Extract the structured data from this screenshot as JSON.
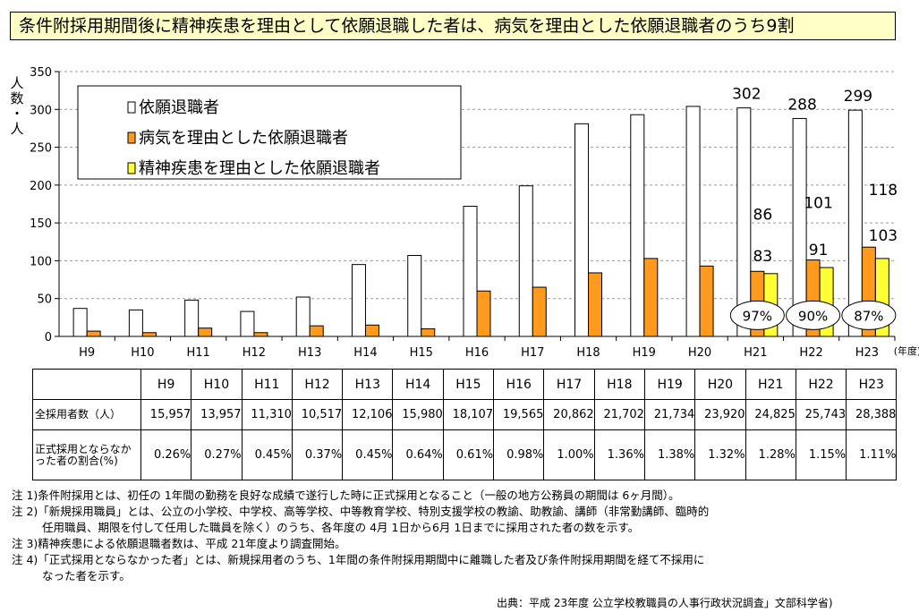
{
  "title": "条件附採用期間後に精神疾患を理由として依願退職した者は、病気を理由とした依願退職者のうち9割",
  "chart_data": {
    "type": "bar",
    "ylabel": "人数・人",
    "xunit": "(年度)",
    "ylim": [
      0,
      350
    ],
    "yticks": [
      0,
      50,
      100,
      150,
      200,
      250,
      300,
      350
    ],
    "grid": true,
    "legend_position": "top-left",
    "categories": [
      "H9",
      "H10",
      "H11",
      "H12",
      "H13",
      "H14",
      "H15",
      "H16",
      "H17",
      "H18",
      "H19",
      "H20",
      "H21",
      "H22",
      "H23"
    ],
    "series": [
      {
        "name": "依願退職者",
        "color": "#ffffff",
        "values": [
          37,
          35,
          48,
          33,
          52,
          95,
          107,
          172,
          199,
          281,
          293,
          304,
          302,
          288,
          299
        ],
        "labels": [
          null,
          null,
          null,
          null,
          null,
          null,
          null,
          null,
          null,
          null,
          null,
          null,
          "302",
          "288",
          "299"
        ]
      },
      {
        "name": "病気を理由とした依願退職者",
        "color": "#ff9a1e",
        "values": [
          7,
          5,
          11,
          5,
          14,
          15,
          10,
          60,
          65,
          84,
          103,
          93,
          86,
          101,
          118
        ],
        "labels": [
          null,
          null,
          null,
          null,
          null,
          null,
          null,
          null,
          null,
          null,
          null,
          null,
          "86",
          "101",
          "118"
        ]
      },
      {
        "name": "精神疾患を理由とした依願退職者",
        "color": "#ffff33",
        "values": [
          null,
          null,
          null,
          null,
          null,
          null,
          null,
          null,
          null,
          null,
          null,
          null,
          83,
          91,
          103
        ],
        "labels": [
          null,
          null,
          null,
          null,
          null,
          null,
          null,
          null,
          null,
          null,
          null,
          null,
          "83",
          "91",
          "103"
        ]
      }
    ],
    "annotations": [
      {
        "category": "H21",
        "text": "97%"
      },
      {
        "category": "H22",
        "text": "90%"
      },
      {
        "category": "H23",
        "text": "87%"
      }
    ]
  },
  "table": {
    "years": [
      "H9",
      "H10",
      "H11",
      "H12",
      "H13",
      "H14",
      "H15",
      "H16",
      "H17",
      "H18",
      "H19",
      "H20",
      "H21",
      "H22",
      "H23"
    ],
    "rows": [
      {
        "label": "全採用者数（人）",
        "values": [
          "15,957",
          "13,957",
          "11,310",
          "10,517",
          "12,106",
          "15,980",
          "18,107",
          "19,565",
          "20,862",
          "21,702",
          "21,734",
          "23,920",
          "24,825",
          "25,743",
          "28,388"
        ]
      },
      {
        "label": "正式採用とならなかった者の割合(%)",
        "values": [
          "0.26%",
          "0.27%",
          "0.45%",
          "0.37%",
          "0.45%",
          "0.64%",
          "0.61%",
          "0.98%",
          "1.00%",
          "1.36%",
          "1.38%",
          "1.32%",
          "1.28%",
          "1.15%",
          "1.11%"
        ]
      }
    ]
  },
  "notes": {
    "n1": "注 1)条件附採用とは、初任の 1年間の勤務を良好な成績で遂行した時に正式採用となること（一般の地方公務員の期間は 6ヶ月間）。",
    "n2a": "注 2)「新規採用職員」とは、公立の小学校、中学校、高等学校、中等教育学校、特別支援学校の教諭、助教諭、講師（非常勤講師、臨時的",
    "n2b": "任用職員、期限を付して任用した職員を除く）のうち、各年度の 4月 1日から6月 1日までに採用された者の数を示す。",
    "n3": "注 3)精神疾患による依願退職者数は、平成 21年度より調査開始。",
    "n4a": "注 4)「正式採用とならなかった者」とは、新規採用者のうち、1年間の条件附採用期間中に離職した者及び条件附採用期間を経て不採用に",
    "n4b": "なった者を示す。"
  },
  "source": "出典：平成 23年度 公立学校教職員の人事行政状況調査」文部科学省)"
}
